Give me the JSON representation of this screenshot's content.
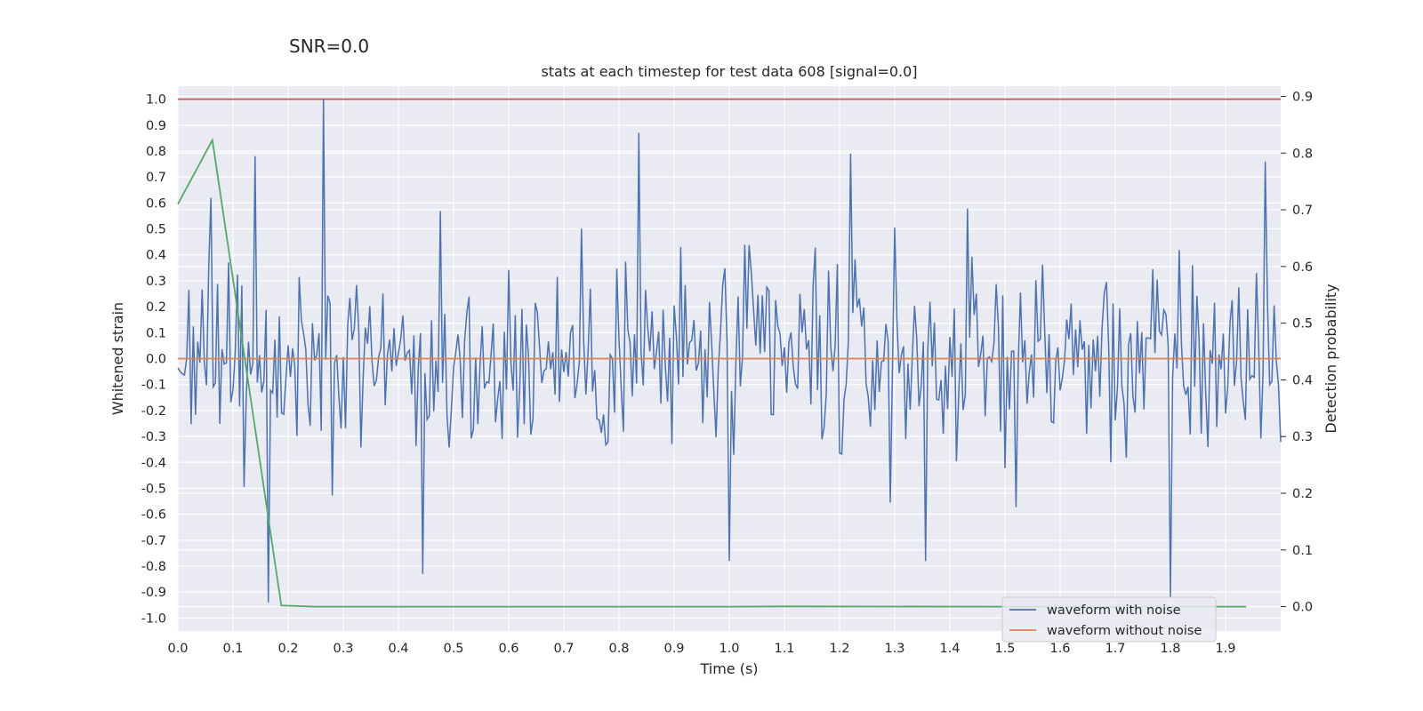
{
  "figure": {
    "suptitle": "SNR=0.0"
  },
  "chart_data": {
    "type": "line",
    "title": "stats at each timestep for test data 608 [signal=0.0]",
    "xlabel": "Time (s)",
    "ylabel": "Whitened strain",
    "y2label": "Detection probability",
    "xlim": [
      0.0,
      2.0
    ],
    "ylim": [
      -1.05,
      1.05
    ],
    "y2lim": [
      -0.043,
      0.918
    ],
    "xticks": [
      "0.0",
      "0.1",
      "0.2",
      "0.3",
      "0.4",
      "0.5",
      "0.6",
      "0.7",
      "0.8",
      "0.9",
      "1.0",
      "1.1",
      "1.2",
      "1.3",
      "1.4",
      "1.5",
      "1.6",
      "1.7",
      "1.8",
      "1.9"
    ],
    "yticks": [
      "1.0",
      "0.9",
      "0.8",
      "0.7",
      "0.6",
      "0.5",
      "0.4",
      "0.3",
      "0.2",
      "0.1",
      "0.0",
      "-0.1",
      "-0.2",
      "-0.3",
      "-0.4",
      "-0.5",
      "-0.6",
      "-0.7",
      "-0.8",
      "-0.9",
      "-1.0"
    ],
    "y2ticks": [
      "0.9",
      "0.8",
      "0.7",
      "0.6",
      "0.5",
      "0.4",
      "0.3",
      "0.2",
      "0.1",
      "0.0"
    ],
    "threshold": {
      "value": 1.0,
      "color": "#c44e52"
    },
    "series": [
      {
        "name": "waveform with noise",
        "color": "#4c72b0",
        "axis": "left",
        "sample_interval": 0.004,
        "t_end": 2.0,
        "spikes": [
          {
            "x": 0.264,
            "y": 1.0
          },
          {
            "x": 0.835,
            "y": 0.87
          },
          {
            "x": 0.14,
            "y": 0.78
          },
          {
            "x": 1.22,
            "y": 0.79
          },
          {
            "x": 1.8,
            "y": -0.92
          },
          {
            "x": 0.165,
            "y": -0.94
          },
          {
            "x": 0.443,
            "y": -0.83
          },
          {
            "x": 0.058,
            "y": 0.62
          },
          {
            "x": 1.0,
            "y": -0.78
          },
          {
            "x": 1.355,
            "y": -0.78
          },
          {
            "x": 1.97,
            "y": 0.76
          }
        ]
      },
      {
        "name": "waveform without noise",
        "color": "#dd8452",
        "axis": "left",
        "x": [
          0.0,
          2.0
        ],
        "y": [
          0.0,
          0.0
        ]
      },
      {
        "name": "detection probability",
        "color": "#55a868",
        "axis": "right",
        "x": [
          0.0,
          0.0625,
          0.1875,
          0.25,
          1.0,
          1.1,
          1.5,
          1.9375
        ],
        "y": [
          0.71,
          0.823,
          0.002,
          0.0,
          0.0,
          0.0005,
          0.0,
          0.0
        ]
      }
    ],
    "legend": {
      "position": "bottom-right",
      "entries": [
        "waveform with noise",
        "waveform without noise"
      ]
    }
  }
}
